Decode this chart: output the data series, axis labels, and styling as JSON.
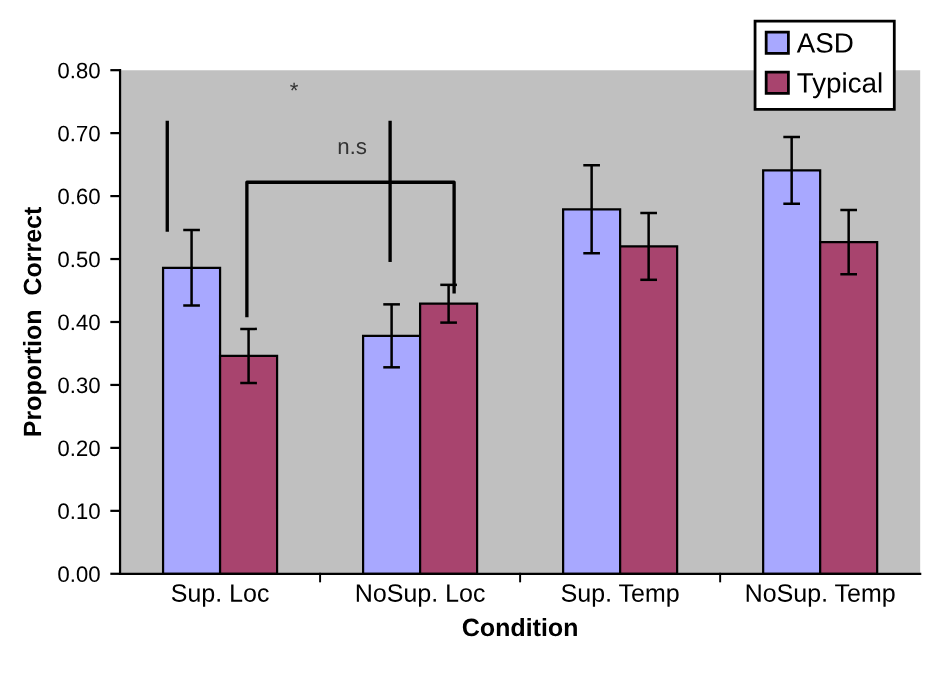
{
  "chart_data": {
    "type": "bar",
    "xlabel": "Condition",
    "ylabel": "Proportion  Correct",
    "categories": [
      "Sup. Loc",
      "NoSup. Loc",
      "Sup. Temp",
      "NoSup. Temp"
    ],
    "series": [
      {
        "name": "ASD",
        "color": "#a8a8ff",
        "values": [
          0.486,
          0.378,
          0.579,
          0.641
        ],
        "errors": [
          0.06,
          0.05,
          0.07,
          0.053
        ]
      },
      {
        "name": "Typical",
        "color": "#a8446e",
        "values": [
          0.346,
          0.429,
          0.52,
          0.527
        ],
        "errors": [
          0.043,
          0.03,
          0.053,
          0.051
        ]
      }
    ],
    "ylim": [
      0,
      0.8
    ],
    "yticks": [
      {
        "value": 0,
        "label": "0.00"
      },
      {
        "value": 0.1,
        "label": "0.10"
      },
      {
        "value": 0.2,
        "label": "0.20"
      },
      {
        "value": 0.3,
        "label": "0.30"
      },
      {
        "value": 0.4,
        "label": "0.40"
      },
      {
        "value": 0.5,
        "label": "0.50"
      },
      {
        "value": 0.6,
        "label": "0.60"
      },
      {
        "value": 0.7,
        "label": "0.70"
      },
      {
        "value": 0.8,
        "label": "0.80"
      }
    ],
    "annotations": [
      "*",
      "n.s"
    ],
    "grid": false,
    "legend": "top right"
  }
}
